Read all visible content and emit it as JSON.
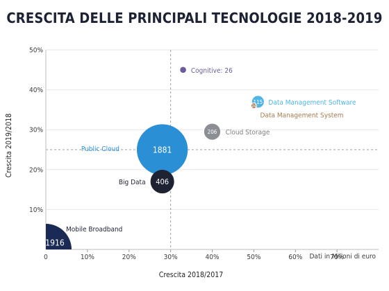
{
  "chart_data": {
    "type": "scatter",
    "title": "CRESCITA DELLE PRINCIPALI TECNOLOGIE 2018-2019",
    "xlabel": "Crescita 2018/2017",
    "ylabel": "Crescita 2019/2018",
    "size_note": "Dati in Milioni di euro",
    "xlim": [
      0,
      0.8
    ],
    "ylim": [
      0,
      0.5
    ],
    "x_ticks": [
      "0",
      "10%",
      "20%",
      "30%",
      "40%",
      "50%",
      "60%",
      "70%"
    ],
    "y_ticks": [
      "10%",
      "20%",
      "30%",
      "40%",
      "50%"
    ],
    "reference_lines": {
      "x": 0.3,
      "y": 0.25
    },
    "points": [
      {
        "name": "Mobile Broadband",
        "x": 0.0,
        "y": 0.0,
        "size": 1916,
        "color": "#1b2a55",
        "value_label": "1916"
      },
      {
        "name": "Public Cloud",
        "x": 0.28,
        "y": 0.25,
        "size": 1881,
        "color": "#2b8fd6",
        "value_label": "1881"
      },
      {
        "name": "Big Data",
        "x": 0.28,
        "y": 0.17,
        "size": 406,
        "color": "#1e2233",
        "value_label": "406"
      },
      {
        "name": "Cloud Storage",
        "x": 0.4,
        "y": 0.295,
        "size": 206,
        "color": "#8b8e93",
        "value_label": "206"
      },
      {
        "name": "Data Management Software",
        "x": 0.51,
        "y": 0.37,
        "size": 115,
        "color": "#4fb4e6",
        "value_label": "115"
      },
      {
        "name": "Data Management System",
        "x": 0.5,
        "y": 0.36,
        "size": 24,
        "color": "#b08a64",
        "value_label": "24"
      },
      {
        "name": "Cognitive",
        "x": 0.33,
        "y": 0.45,
        "size": 26,
        "color": "#6b5a9e",
        "value_label": ""
      }
    ],
    "point_labels": [
      {
        "name": "Mobile Broadband",
        "text": "Mobile Broadband",
        "color": "#1e2233"
      },
      {
        "name": "Public Cloud",
        "text": "Public Cloud",
        "color": "#2b8fd6"
      },
      {
        "name": "Big Data",
        "text": "Big Data",
        "color": "#1e2233"
      },
      {
        "name": "Cloud Storage",
        "text": "Cloud Storage",
        "color": "#7d8085"
      },
      {
        "name": "Data Management Software",
        "text": "Data Management Software",
        "color": "#4fb4e6"
      },
      {
        "name": "Data Management System",
        "text": "Data Management System",
        "color": "#a67c52"
      },
      {
        "name": "Cognitive",
        "text": "Cognitive: 26",
        "color": "#6b5a9e"
      }
    ]
  }
}
